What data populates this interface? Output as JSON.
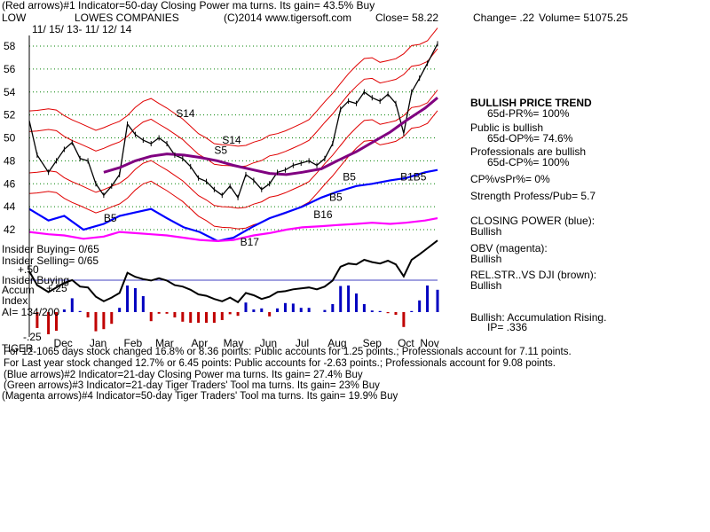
{
  "header": {
    "line1": "(Red arrows)#1 Indicator=50-day Closing Power ma turns. Its gain= 43.5% Buy",
    "symbol": "LOW",
    "company": "LOWES COMPANIES",
    "copyright": "(C)2014 www.tigersoft.com",
    "close": "Close=  58.22",
    "change": "Change= .22",
    "volume": "Volume= 51075.25",
    "dates": "11/ 15/ 13- 11/ 12/ 14"
  },
  "right_panel": {
    "trend": "BULLISH PRICE TREND",
    "pr": "65d-PR%= 100%",
    "public": "Public is bullish",
    "op": "65d-OP%= 74.6%",
    "professionals": "Professionals are bullish",
    "cp": "65d-CP%= 100%",
    "cpvspr": "CP%vsPr%=  0%",
    "strength": "Strength Profess/Pub= 5.7",
    "closing_power": "CLOSING POWER (blue):",
    "closing_power_val": "Bullish",
    "obv": "OBV (magenta):",
    "obv_val": "Bullish",
    "relstr": "REL.STR..VS DJI (brown):",
    "relstr_val": "Bullish",
    "accum": "Bullish: Accumulation Rising.",
    "ip": "IP=  .336"
  },
  "left_labels": {
    "insider_buying": "Insider Buying= 0/65",
    "insider_selling": "Insider Selling= 0/65",
    "insider_buying2": "Insider Buying",
    "plus50": "+.50",
    "accum": "Accum",
    "plus25": "+.25",
    "index": "Index",
    "ai": "AI= 134/200",
    "minus25": "-.25"
  },
  "footer": {
    "line1": "For 12-1065 days stock changed  16.8% or  8.36 points:  Public accounts for  1.25 points.;  Professionals account for  7.11 points.",
    "line1_overlay": "TIGER",
    "line2": "For Last year stock changed  12.7% or  6.45 points:  Public accounts for -2.63 points.;  Professionals account for  9.08 points.",
    "line3": "(Blue arrows)#2 Indicator=21-day Closing Power ma turns. Its gain= 27.4% Buy",
    "line4": "(Green arrows)#3 Indicator=21-day Tiger Traders' Tool ma turns. Its gain= 23% Buy",
    "line5": "(Magenta arrows)#4 Indicator=50-day Tiger Traders' Tool ma turns. Its gain= 19.9% Buy"
  },
  "signals": [
    {
      "label": "S14",
      "x": "2014-03-25",
      "y": 51.8
    },
    {
      "label": "S5",
      "x": "2014-04-28",
      "y": 48.6
    },
    {
      "label": "S14",
      "x": "2014-05-05",
      "y": 49.5
    },
    {
      "label": "B5",
      "x": "2014-01-20",
      "y": 42.7
    },
    {
      "label": "B17",
      "x": "2014-05-21",
      "y": 40.6
    },
    {
      "label": "B16",
      "x": "2014-07-25",
      "y": 43.0
    },
    {
      "label": "B5",
      "x": "2014-08-08",
      "y": 44.5
    },
    {
      "label": "B5",
      "x": "2014-08-20",
      "y": 46.3
    },
    {
      "label": "B1B5",
      "x": "2014-10-10",
      "y": 46.3
    }
  ],
  "chart_data": {
    "type": "line",
    "title": "LOWES COMPANIES",
    "x_range": [
      "2013-11-15",
      "2014-11-12"
    ],
    "ylim": [
      41,
      59.5
    ],
    "yticks": [
      42,
      44,
      46,
      48,
      50,
      52,
      54,
      56,
      58
    ],
    "month_labels": [
      "Dec",
      "Jan",
      "Feb",
      "Mar",
      "Apr",
      "May",
      "Jun",
      "Jul",
      "Aug",
      "Sep",
      "Oct",
      "Nov"
    ],
    "grid": true,
    "series": [
      {
        "name": "price",
        "color": "#000000",
        "x": [
          "2013-11-15",
          "2013-11-22",
          "2013-12-02",
          "2013-12-09",
          "2013-12-16",
          "2013-12-23",
          "2013-12-30",
          "2014-01-06",
          "2014-01-13",
          "2014-01-20",
          "2014-01-27",
          "2014-02-03",
          "2014-02-10",
          "2014-02-17",
          "2014-02-24",
          "2014-03-03",
          "2014-03-10",
          "2014-03-17",
          "2014-03-24",
          "2014-03-31",
          "2014-04-07",
          "2014-04-14",
          "2014-04-21",
          "2014-04-28",
          "2014-05-05",
          "2014-05-12",
          "2014-05-19",
          "2014-05-26",
          "2014-06-02",
          "2014-06-09",
          "2014-06-16",
          "2014-06-23",
          "2014-06-30",
          "2014-07-07",
          "2014-07-14",
          "2014-07-21",
          "2014-07-28",
          "2014-08-04",
          "2014-08-11",
          "2014-08-18",
          "2014-08-25",
          "2014-09-01",
          "2014-09-08",
          "2014-09-15",
          "2014-09-22",
          "2014-09-29",
          "2014-10-06",
          "2014-10-13",
          "2014-10-20",
          "2014-10-27",
          "2014-11-03",
          "2014-11-12"
        ],
        "values": [
          51.5,
          48.5,
          47.0,
          48.0,
          49.0,
          49.6,
          48.2,
          48.0,
          46.0,
          45.0,
          45.8,
          46.8,
          51.2,
          50.3,
          49.8,
          49.5,
          50.0,
          49.5,
          48.5,
          48.2,
          47.5,
          46.5,
          46.2,
          45.5,
          45.0,
          45.8,
          44.8,
          46.8,
          46.3,
          45.5,
          46.0,
          47.0,
          47.2,
          47.6,
          47.8,
          48.0,
          47.6,
          48.2,
          49.5,
          52.5,
          53.2,
          53.0,
          54.0,
          53.5,
          53.2,
          53.8,
          53.0,
          50.4,
          54.0,
          55.2,
          56.5,
          58.2
        ]
      },
      {
        "name": "closing_power",
        "color": "#0000ff",
        "x": [
          "2013-11-15",
          "2013-12-02",
          "2013-12-16",
          "2014-01-02",
          "2014-01-20",
          "2014-02-03",
          "2014-02-17",
          "2014-03-03",
          "2014-03-17",
          "2014-04-01",
          "2014-04-15",
          "2014-05-01",
          "2014-05-15",
          "2014-06-02",
          "2014-06-16",
          "2014-07-01",
          "2014-07-15",
          "2014-08-01",
          "2014-08-15",
          "2014-09-01",
          "2014-09-15",
          "2014-10-01",
          "2014-10-15",
          "2014-11-01",
          "2014-11-12"
        ],
        "values": [
          43.8,
          42.8,
          43.2,
          42.0,
          42.5,
          43.2,
          43.5,
          43.8,
          43.0,
          42.2,
          41.8,
          41.0,
          41.3,
          42.3,
          43.0,
          43.5,
          44.0,
          44.8,
          45.3,
          45.8,
          46.0,
          46.3,
          46.5,
          47.0,
          47.2
        ]
      },
      {
        "name": "obv",
        "color": "#ff00ff",
        "x": [
          "2013-11-15",
          "2013-12-02",
          "2013-12-16",
          "2014-01-02",
          "2014-01-20",
          "2014-02-03",
          "2014-02-17",
          "2014-03-03",
          "2014-03-17",
          "2014-04-01",
          "2014-04-15",
          "2014-05-01",
          "2014-05-15",
          "2014-06-02",
          "2014-06-16",
          "2014-07-01",
          "2014-07-15",
          "2014-08-01",
          "2014-08-15",
          "2014-09-01",
          "2014-09-15",
          "2014-10-01",
          "2014-10-15",
          "2014-11-01",
          "2014-11-12"
        ],
        "values": [
          41.8,
          41.6,
          41.5,
          41.2,
          41.4,
          41.8,
          41.7,
          41.6,
          41.5,
          41.3,
          41.1,
          41.0,
          41.1,
          41.5,
          41.7,
          42.0,
          42.2,
          42.3,
          42.4,
          42.5,
          42.6,
          42.5,
          42.6,
          42.8,
          43.0
        ]
      },
      {
        "name": "ma_50",
        "color": "#800080",
        "x": [
          "2014-01-20",
          "2014-02-03",
          "2014-02-17",
          "2014-03-03",
          "2014-03-17",
          "2014-04-01",
          "2014-04-15",
          "2014-05-01",
          "2014-05-15",
          "2014-06-02",
          "2014-06-16",
          "2014-07-01",
          "2014-07-15",
          "2014-08-01",
          "2014-08-15",
          "2014-09-01",
          "2014-09-15",
          "2014-10-01",
          "2014-10-15",
          "2014-11-01",
          "2014-11-12"
        ],
        "values": [
          47.0,
          47.4,
          48.0,
          48.4,
          48.6,
          48.5,
          48.3,
          48.0,
          47.6,
          47.2,
          46.9,
          46.8,
          47.0,
          47.3,
          48.0,
          48.8,
          49.6,
          50.5,
          51.5,
          52.6,
          53.5
        ]
      }
    ]
  }
}
